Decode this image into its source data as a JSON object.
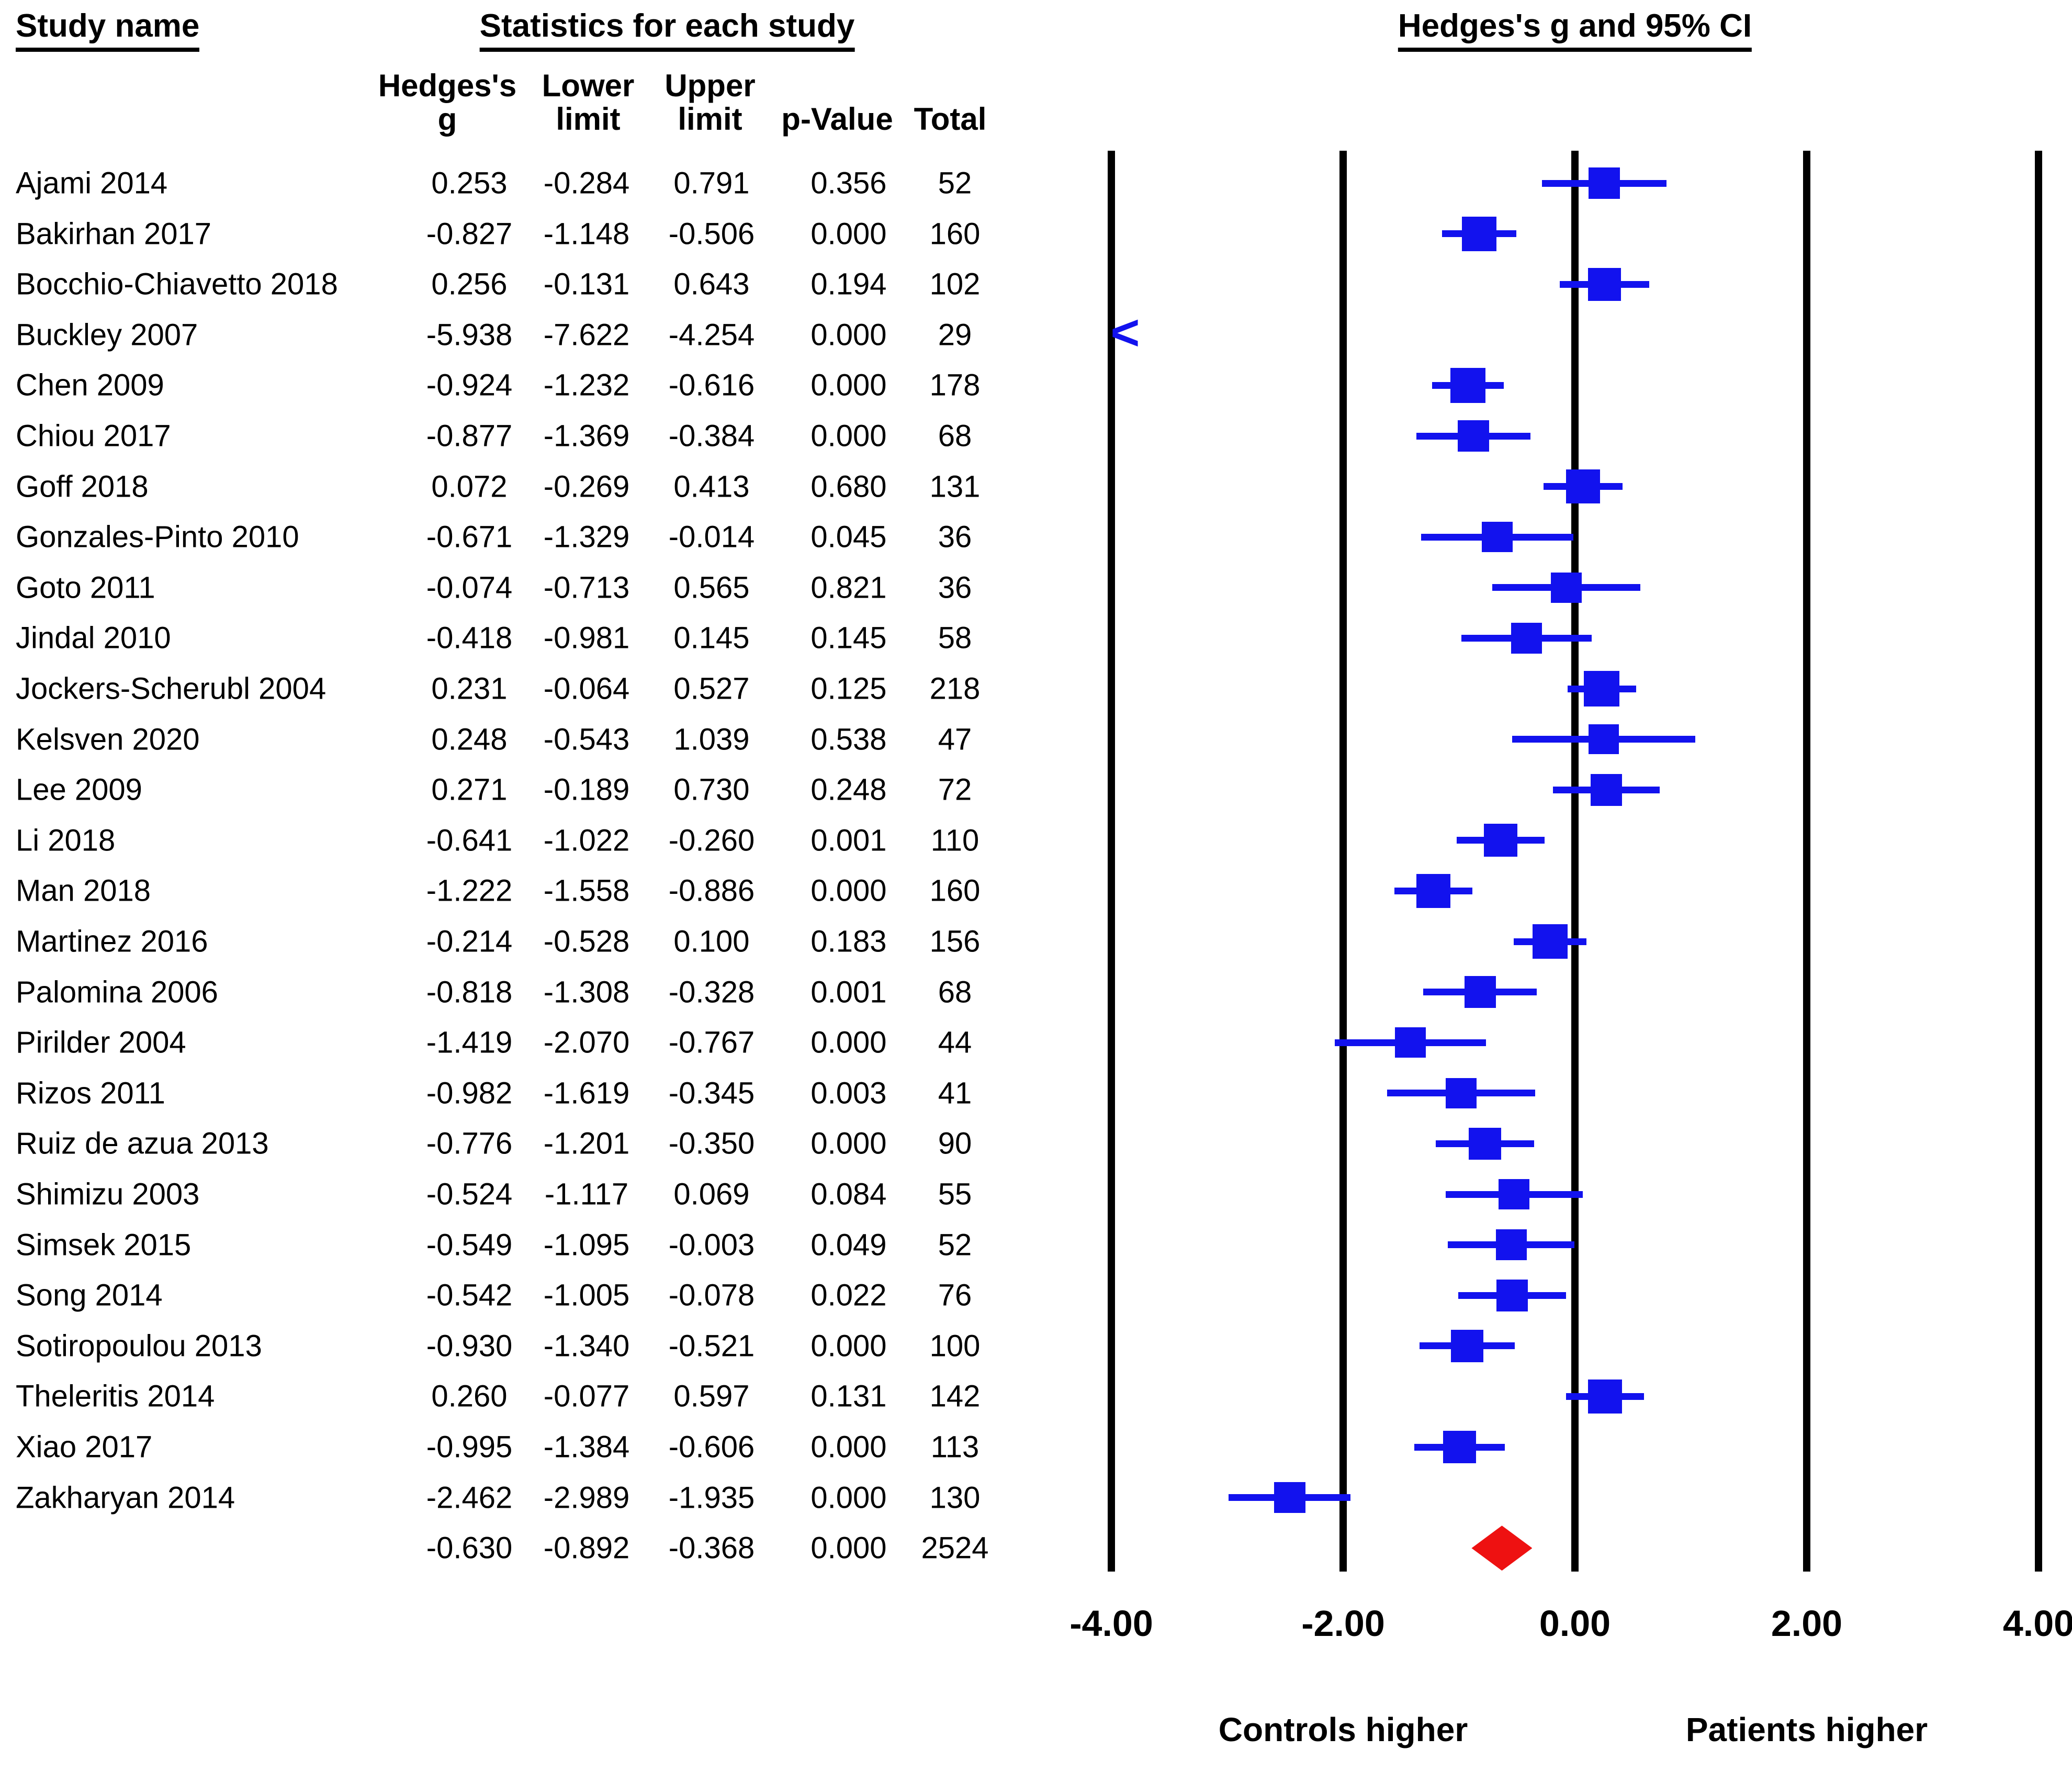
{
  "title_headers": {
    "study_name": "Study name",
    "statistics": "Statistics for each study",
    "plot": "Hedges's g and 95% CI"
  },
  "column_headers": {
    "hedges_line1": "Hedges's",
    "hedges_line2": "g",
    "lower_line1": "Lower",
    "lower_line2": "limit",
    "upper_line1": "Upper",
    "upper_line2": "limit",
    "p_value": "p-Value",
    "total": "Total"
  },
  "footer": {
    "left": "Controls higher",
    "right": "Patients higher"
  },
  "colors": {
    "marker_blue": "#1212ee",
    "diamond_red": "#ee1111",
    "line_black": "#000000"
  },
  "chart_data": {
    "type": "scatter",
    "variant": "forest-plot",
    "title": "Hedges's g and 95% CI",
    "effect_measure": "Hedges's g",
    "x_axis": {
      "min": -4,
      "max": 4,
      "ticks": [
        -4,
        -2,
        0,
        2,
        4
      ],
      "tick_labels": [
        "-4.00",
        "-2.00",
        "0.00",
        "2.00",
        "4.00"
      ]
    },
    "x_annotations": {
      "left": "Controls higher",
      "right": "Patients higher"
    },
    "legend_position": "none",
    "grid": "vertical-reference-lines",
    "points": [
      {
        "name": "Ajami 2014",
        "g": "0.253",
        "lower": "-0.284",
        "upper": "0.791",
        "p": "0.356",
        "total": "52"
      },
      {
        "name": "Bakirhan 2017",
        "g": "-0.827",
        "lower": "-1.148",
        "upper": "-0.506",
        "p": "0.000",
        "total": "160"
      },
      {
        "name": "Bocchio-Chiavetto 2018",
        "g": "0.256",
        "lower": "-0.131",
        "upper": "0.643",
        "p": "0.194",
        "total": "102"
      },
      {
        "name": "Buckley  2007",
        "g": "-5.938",
        "lower": "-7.622",
        "upper": "-4.254",
        "p": "0.000",
        "total": "29",
        "offscale_low": true
      },
      {
        "name": "Chen 2009",
        "g": "-0.924",
        "lower": "-1.232",
        "upper": "-0.616",
        "p": "0.000",
        "total": "178"
      },
      {
        "name": "Chiou 2017",
        "g": "-0.877",
        "lower": "-1.369",
        "upper": "-0.384",
        "p": "0.000",
        "total": "68"
      },
      {
        "name": "Goff 2018",
        "g": "0.072",
        "lower": "-0.269",
        "upper": "0.413",
        "p": "0.680",
        "total": "131"
      },
      {
        "name": "Gonzales-Pinto 2010",
        "g": "-0.671",
        "lower": "-1.329",
        "upper": "-0.014",
        "p": "0.045",
        "total": "36"
      },
      {
        "name": "Goto 2011",
        "g": "-0.074",
        "lower": "-0.713",
        "upper": "0.565",
        "p": "0.821",
        "total": "36"
      },
      {
        "name": "Jindal 2010",
        "g": "-0.418",
        "lower": "-0.981",
        "upper": "0.145",
        "p": "0.145",
        "total": "58"
      },
      {
        "name": "Jockers-Scherubl 2004",
        "g": "0.231",
        "lower": "-0.064",
        "upper": "0.527",
        "p": "0.125",
        "total": "218"
      },
      {
        "name": "Kelsven 2020",
        "g": "0.248",
        "lower": "-0.543",
        "upper": "1.039",
        "p": "0.538",
        "total": "47"
      },
      {
        "name": "Lee 2009",
        "g": "0.271",
        "lower": "-0.189",
        "upper": "0.730",
        "p": "0.248",
        "total": "72"
      },
      {
        "name": "Li 2018",
        "g": "-0.641",
        "lower": "-1.022",
        "upper": "-0.260",
        "p": "0.001",
        "total": "110"
      },
      {
        "name": "Man 2018",
        "g": "-1.222",
        "lower": "-1.558",
        "upper": "-0.886",
        "p": "0.000",
        "total": "160"
      },
      {
        "name": "Martinez 2016",
        "g": "-0.214",
        "lower": "-0.528",
        "upper": "0.100",
        "p": "0.183",
        "total": "156"
      },
      {
        "name": "Palomina 2006",
        "g": "-0.818",
        "lower": "-1.308",
        "upper": "-0.328",
        "p": "0.001",
        "total": "68"
      },
      {
        "name": "Pirilder 2004",
        "g": "-1.419",
        "lower": "-2.070",
        "upper": "-0.767",
        "p": "0.000",
        "total": "44"
      },
      {
        "name": "Rizos 2011",
        "g": "-0.982",
        "lower": "-1.619",
        "upper": "-0.345",
        "p": "0.003",
        "total": "41"
      },
      {
        "name": "Ruiz de azua 2013",
        "g": "-0.776",
        "lower": "-1.201",
        "upper": "-0.350",
        "p": "0.000",
        "total": "90"
      },
      {
        "name": "Shimizu 2003",
        "g": "-0.524",
        "lower": "-1.117",
        "upper": "0.069",
        "p": "0.084",
        "total": "55"
      },
      {
        "name": "Simsek 2015",
        "g": "-0.549",
        "lower": "-1.095",
        "upper": "-0.003",
        "p": "0.049",
        "total": "52"
      },
      {
        "name": "Song 2014",
        "g": "-0.542",
        "lower": "-1.005",
        "upper": "-0.078",
        "p": "0.022",
        "total": "76"
      },
      {
        "name": "Sotiropoulou 2013",
        "g": "-0.930",
        "lower": "-1.340",
        "upper": "-0.521",
        "p": "0.000",
        "total": "100"
      },
      {
        "name": "Theleritis 2014",
        "g": "0.260",
        "lower": "-0.077",
        "upper": "0.597",
        "p": "0.131",
        "total": "142"
      },
      {
        "name": "Xiao 2017",
        "g": "-0.995",
        "lower": "-1.384",
        "upper": "-0.606",
        "p": "0.000",
        "total": "113"
      },
      {
        "name": "Zakharyan 2014",
        "g": "-2.462",
        "lower": "-2.989",
        "upper": "-1.935",
        "p": "0.000",
        "total": "130"
      }
    ],
    "overall": {
      "name": "",
      "g": "-0.630",
      "lower": "-0.892",
      "upper": "-0.368",
      "p": "0.000",
      "total": "2524",
      "marker": "red-diamond"
    }
  }
}
